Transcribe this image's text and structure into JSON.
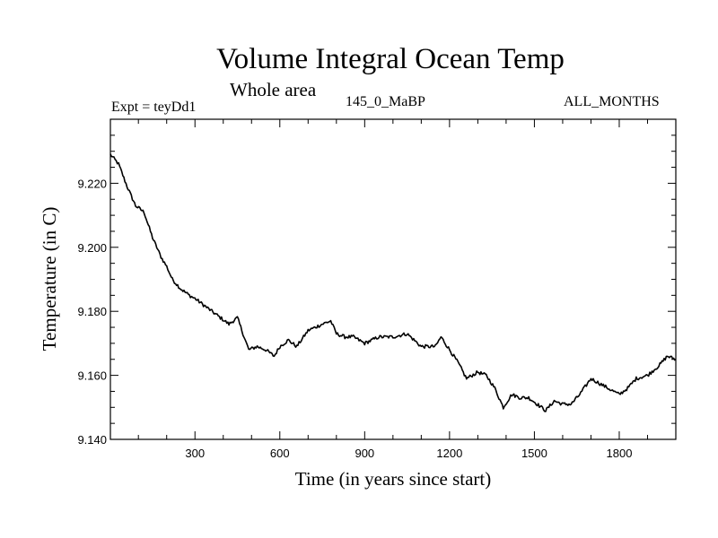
{
  "chart_data": {
    "type": "line",
    "title": "Volume Integral Ocean Temp",
    "subtitle": "Whole area",
    "experiment_label": "Expt = teyDd1",
    "period_label": "145_0_MaBP",
    "months_label": "ALL_MONTHS",
    "xlabel": "Time (in years since start)",
    "ylabel": "Temperature (in C)",
    "xlim": [
      1,
      2000
    ],
    "ylim": [
      9.14,
      9.24
    ],
    "xticks": [
      300,
      600,
      900,
      1200,
      1500,
      1800
    ],
    "xtick_labels": [
      "300",
      "600",
      "900",
      "1200",
      "1500",
      "1800"
    ],
    "yticks": [
      9.14,
      9.16,
      9.18,
      9.2,
      9.22
    ],
    "ytick_labels": [
      "9.140",
      "9.160",
      "9.180",
      "9.200",
      "9.220"
    ],
    "series": [
      {
        "name": "Volume Integral Ocean Temp",
        "x": [
          1,
          30,
          60,
          90,
          120,
          150,
          180,
          200,
          220,
          250,
          280,
          300,
          330,
          360,
          390,
          420,
          450,
          470,
          490,
          520,
          550,
          580,
          600,
          630,
          660,
          700,
          750,
          780,
          800,
          830,
          860,
          900,
          950,
          1000,
          1050,
          1100,
          1150,
          1170,
          1200,
          1230,
          1260,
          1300,
          1330,
          1360,
          1390,
          1420,
          1450,
          1480,
          1510,
          1540,
          1570,
          1600,
          1630,
          1660,
          1700,
          1740,
          1780,
          1800,
          1830,
          1860,
          1900,
          1940,
          1970,
          2000
        ],
        "y": [
          9.229,
          9.226,
          9.219,
          9.213,
          9.211,
          9.203,
          9.197,
          9.194,
          9.19,
          9.187,
          9.185,
          9.184,
          9.182,
          9.18,
          9.178,
          9.176,
          9.178,
          9.173,
          9.168,
          9.169,
          9.168,
          9.166,
          9.169,
          9.171,
          9.169,
          9.174,
          9.176,
          9.177,
          9.173,
          9.172,
          9.172,
          9.17,
          9.172,
          9.172,
          9.173,
          9.169,
          9.169,
          9.172,
          9.168,
          9.164,
          9.159,
          9.161,
          9.16,
          9.156,
          9.15,
          9.154,
          9.153,
          9.153,
          9.151,
          9.149,
          9.152,
          9.151,
          9.151,
          9.154,
          9.159,
          9.157,
          9.155,
          9.154,
          9.156,
          9.159,
          9.16,
          9.163,
          9.166,
          9.165
        ]
      }
    ]
  }
}
